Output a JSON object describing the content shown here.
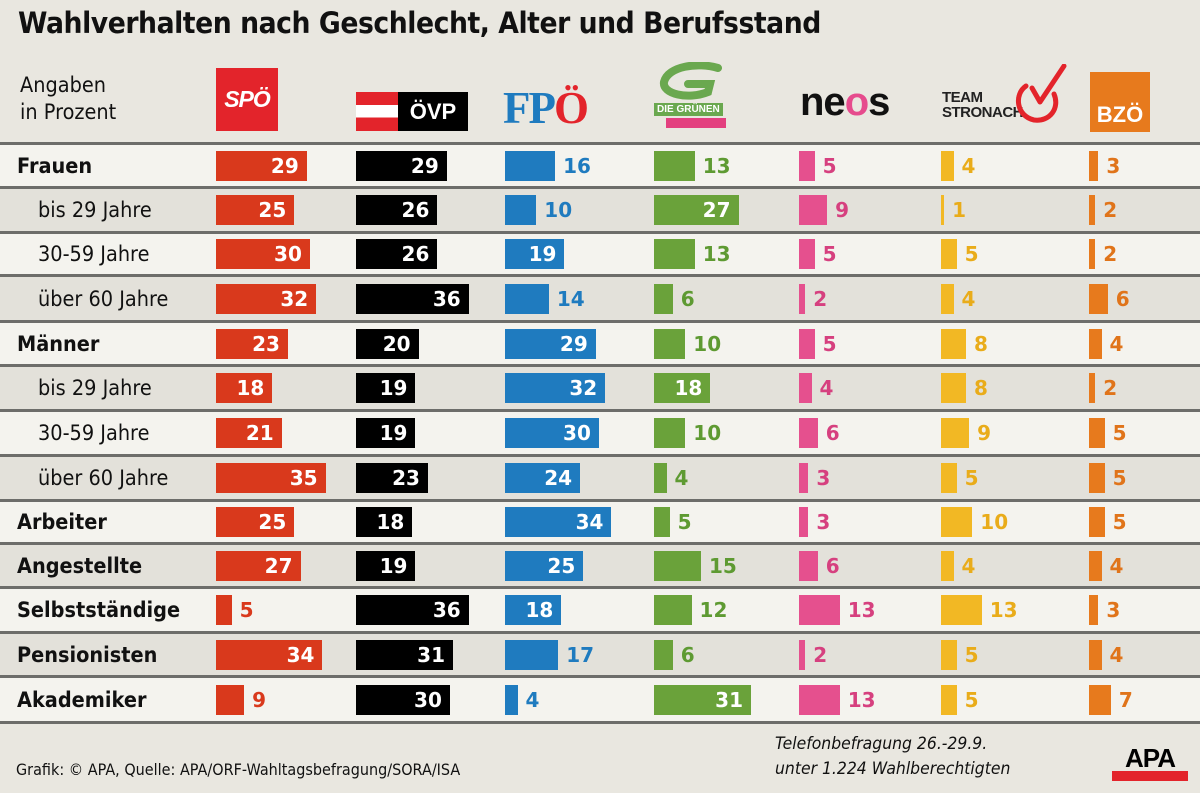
{
  "title": "Wahlverhalten nach Geschlecht, Alter und Berufsstand",
  "units": [
    "Angaben",
    "in Prozent"
  ],
  "parties": [
    {
      "id": "spoe",
      "name": "SPÖ",
      "color": "#d9391c",
      "label_color": "#d9391c"
    },
    {
      "id": "oevp",
      "name": "ÖVP",
      "color": "#000000",
      "label_color": "#000000"
    },
    {
      "id": "fpoe",
      "name": "FPÖ",
      "color": "#1f7bbf",
      "label_color": "#1f7bbf"
    },
    {
      "id": "gruene",
      "name": "DIE GRÜNEN",
      "color": "#6aa23a",
      "label_color": "#5e9a32"
    },
    {
      "id": "neos",
      "name": "neos",
      "color": "#e5508e",
      "label_color": "#d6407f"
    },
    {
      "id": "stronach",
      "name": "TEAM STRONACH",
      "color": "#f2b824",
      "label_color": "#e9ac1a"
    },
    {
      "id": "bzoe",
      "name": "BZÖ",
      "color": "#e77a1d",
      "label_color": "#e0741a"
    }
  ],
  "logos": {
    "spoe": "SPÖ",
    "oevp": "ÖVP",
    "fpoe_fp": "FP",
    "fpoe_o": "Ö",
    "gruene": "DIE GRÜNEN",
    "neos_ne": "ne",
    "neos_o": "o",
    "neos_s": "s",
    "stronach_1": "TEAM",
    "stronach_2": "STRONACH",
    "bzoe": "BZÖ",
    "apa": "APA"
  },
  "chart_data": {
    "type": "bar",
    "orientation": "horizontal",
    "title": "Wahlverhalten nach Geschlecht, Alter und Berufsstand",
    "unit_label": "Angaben in Prozent",
    "categories": [
      "Frauen",
      "bis 29 Jahre",
      "30-59 Jahre",
      "über 60 Jahre",
      "Männer",
      "bis 29 Jahre",
      "30-59 Jahre",
      "über 60 Jahre",
      "Arbeiter",
      "Angestellte",
      "Selbstständige",
      "Pensionisten",
      "Akademiker"
    ],
    "category_level": [
      "main",
      "sub",
      "sub",
      "sub",
      "main",
      "sub",
      "sub",
      "sub",
      "main",
      "main",
      "main",
      "main",
      "main"
    ],
    "series": [
      {
        "name": "SPÖ",
        "values": [
          29,
          25,
          30,
          32,
          23,
          18,
          21,
          35,
          25,
          27,
          5,
          34,
          9
        ]
      },
      {
        "name": "ÖVP",
        "values": [
          29,
          26,
          26,
          36,
          20,
          19,
          19,
          23,
          18,
          19,
          36,
          31,
          30
        ]
      },
      {
        "name": "FPÖ",
        "values": [
          16,
          10,
          19,
          14,
          29,
          32,
          30,
          24,
          34,
          25,
          18,
          17,
          4
        ]
      },
      {
        "name": "Die Grünen",
        "values": [
          13,
          27,
          13,
          6,
          10,
          18,
          10,
          4,
          5,
          15,
          12,
          6,
          31
        ]
      },
      {
        "name": "NEOS",
        "values": [
          5,
          9,
          5,
          2,
          5,
          4,
          6,
          3,
          3,
          6,
          13,
          2,
          13
        ]
      },
      {
        "name": "Team Stronach",
        "values": [
          4,
          1,
          5,
          4,
          8,
          8,
          9,
          5,
          10,
          4,
          13,
          5,
          5
        ]
      },
      {
        "name": "BZÖ",
        "values": [
          3,
          2,
          2,
          6,
          4,
          2,
          5,
          5,
          5,
          4,
          3,
          4,
          7
        ]
      }
    ],
    "value_unit": "%",
    "grid": false,
    "legend": "top (party logos as column headers)"
  },
  "footer": {
    "source": "Grafik: © APA, Quelle: APA/ORF-Wahltagsbefragung/SORA/ISA",
    "note_line1": "Telefonbefragung 26.-29.9.",
    "note_line2": "unter 1.224 Wahlberechtigten"
  }
}
